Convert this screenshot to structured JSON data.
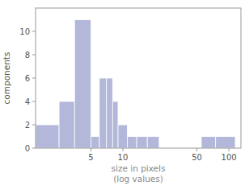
{
  "chart_data": {
    "type": "histogram",
    "xlabel": "size in pixels\n(log values)",
    "ylabel": "components",
    "bins": [
      1.5,
      2.5,
      3.5,
      5.0,
      6.0,
      7.0,
      8.0,
      9.0,
      11.0,
      13.5,
      17.0,
      22.0,
      55.0,
      75.0,
      115.0
    ],
    "values": [
      2,
      4,
      11,
      1,
      6,
      6,
      4,
      2,
      1,
      1,
      1,
      0,
      1,
      1
    ],
    "color": "#b3b7d9",
    "xlim": [
      1.5,
      130.0
    ],
    "ylim": [
      0,
      12
    ],
    "xticks": [
      5,
      10,
      50,
      100
    ],
    "yticks": [
      0,
      2,
      4,
      6,
      8,
      10
    ],
    "log": "x",
    "grid": false
  }
}
